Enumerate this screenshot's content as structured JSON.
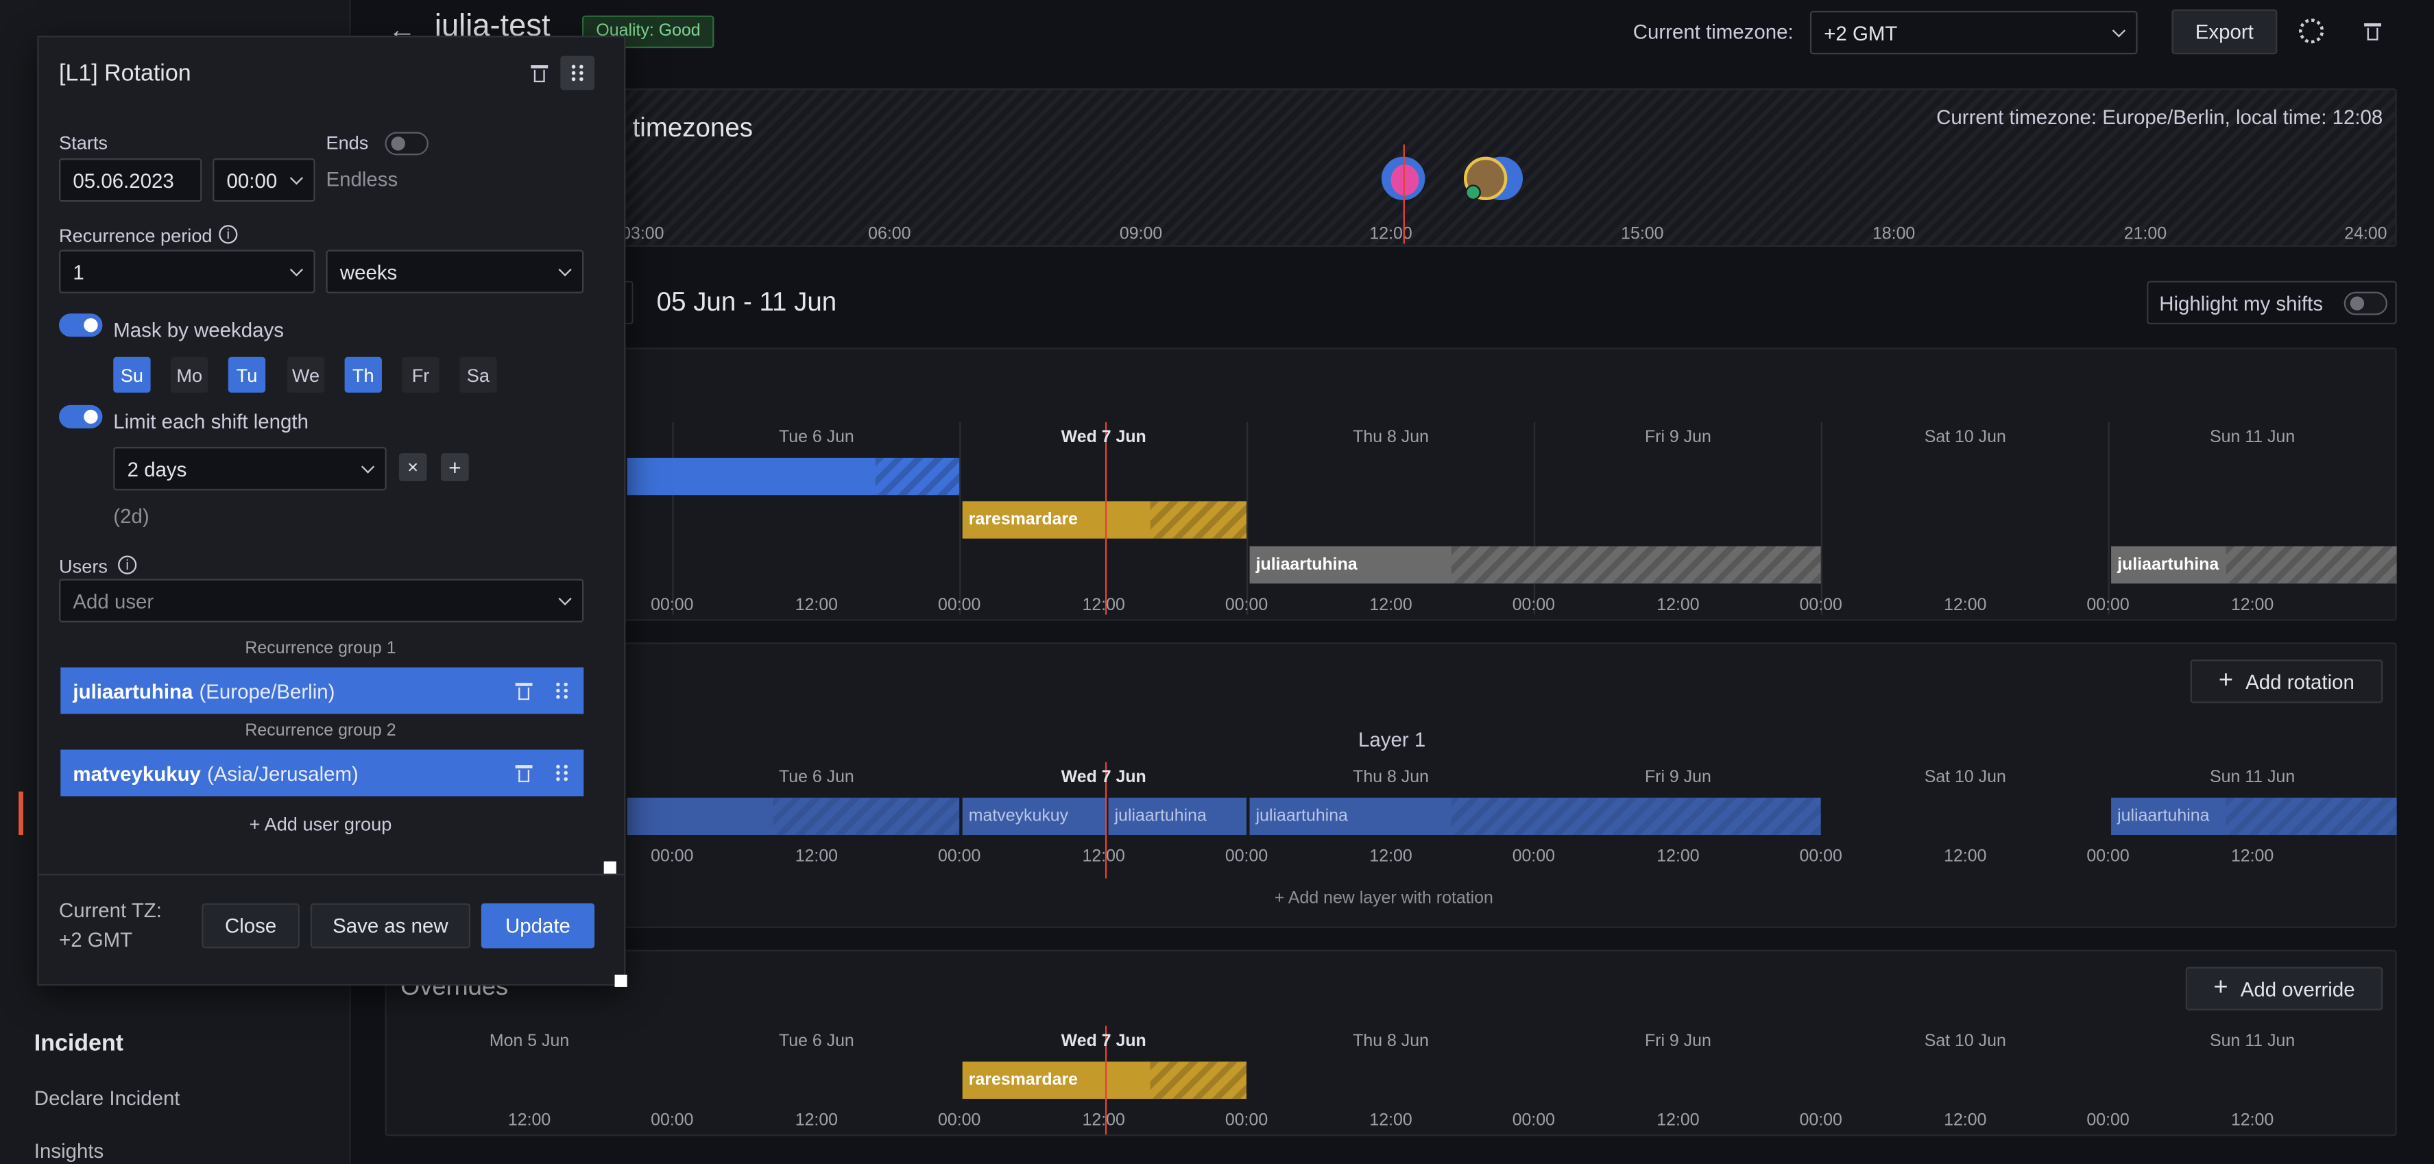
{
  "header": {
    "schedule_name": "julia-test",
    "quality_badge": "Quality: Good",
    "timezone_label": "Current timezone:",
    "timezone_value": "+2 GMT",
    "export_label": "Export"
  },
  "timezone_panel": {
    "title_fragment": "l timezones",
    "current_info": "Current timezone: Europe/Berlin, local time: 12:08",
    "hours": [
      "03:00",
      "06:00",
      "09:00",
      "12:00",
      "15:00",
      "18:00",
      "21:00",
      "24:00"
    ]
  },
  "week": {
    "range": "05 Jun - 11 Jun",
    "highlight_label": "Highlight my shifts"
  },
  "days": [
    "Mon 5 Jun",
    "Tue 6 Jun",
    "Wed 7 Jun",
    "Thu 8 Jun",
    "Fri 9 Jun",
    "Sat 10 Jun",
    "Sun 11 Jun"
  ],
  "ticks": [
    "12:00",
    "00:00",
    "12:00",
    "00:00",
    "12:00",
    "00:00",
    "12:00",
    "00:00",
    "12:00",
    "00:00",
    "12:00",
    "00:00",
    "12:00"
  ],
  "final_schedule": {
    "shifts": [
      "raresmardare",
      "juliaartuhina",
      "juliaartuhina"
    ]
  },
  "rotations": {
    "add_rotation": "Add rotation",
    "layer_title": "Layer 1",
    "shifts": [
      "matveykukuy",
      "juliaartuhina",
      "juliaartuhina",
      "juliaartuhina"
    ],
    "add_layer": "+ Add new layer with rotation"
  },
  "overrides": {
    "title": "Overrides",
    "add_override": "Add override",
    "shifts": [
      "raresmardare"
    ]
  },
  "sidebar": {
    "section_title": "Incident",
    "items": [
      "Declare Incident",
      "Insights"
    ]
  },
  "drawer": {
    "title": "[L1] Rotation",
    "starts_label": "Starts",
    "start_date": "05.06.2023",
    "start_time": "00:00",
    "ends_label": "Ends",
    "ends_value": "Endless",
    "recurrence_label": "Recurrence period",
    "recurrence_count": "1",
    "recurrence_unit": "weeks",
    "mask_label": "Mask by weekdays",
    "weekdays": [
      "Su",
      "Mo",
      "Tu",
      "We",
      "Th",
      "Fr",
      "Sa"
    ],
    "weekdays_selected": [
      "Su",
      "Tu",
      "Th"
    ],
    "limit_label": "Limit each shift length",
    "limit_value": "2 days",
    "limit_hint": "(2d)",
    "users_label": "Users",
    "add_user_placeholder": "Add user",
    "groups": [
      {
        "title": "Recurrence group 1",
        "user": "juliaartuhina",
        "tz": "(Europe/Berlin)"
      },
      {
        "title": "Recurrence group 2",
        "user": "matveykukuy",
        "tz": "(Asia/Jerusalem)"
      }
    ],
    "add_group": "+ Add user group",
    "current_tz_label": "Current TZ:",
    "current_tz_value": "+2 GMT",
    "close_label": "Close",
    "save_new_label": "Save as new",
    "update_label": "Update"
  },
  "colors": {
    "accent": "#3d71d9",
    "shift_yellow": "#c49a2a",
    "shift_gray": "#6b6b6b",
    "now_line": "#e0433a"
  }
}
